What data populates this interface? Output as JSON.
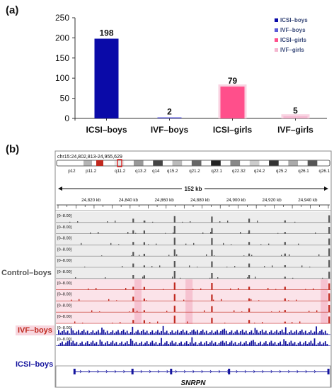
{
  "panel_a_label": "(a)",
  "panel_b_label": "(b)",
  "chart_data": {
    "type": "bar",
    "categories": [
      "ICSI–boys",
      "IVF–boys",
      "ICSI–girls",
      "IVF–girls"
    ],
    "values": [
      198,
      2,
      79,
      5
    ],
    "data_labels": [
      "198",
      "2",
      "79",
      "5"
    ],
    "colors": [
      "#0a0aa8",
      "#5b5bd6",
      "#ff4f8b",
      "#f4b6cf"
    ],
    "yticks": [
      0,
      50,
      100,
      150,
      200,
      250
    ],
    "ylim": [
      0,
      250
    ],
    "legend": [
      "ICSI–boys",
      "IVF–boys",
      "ICSI–girls",
      "IVF–girls"
    ],
    "legend_position": "top-right",
    "grid": false
  },
  "igv": {
    "locus": "chr15:24,802,813-24,955,629",
    "cytobands": [
      "p12",
      "p11.2",
      "q11.2",
      "q13.2",
      "q14",
      "q15.2",
      "q21.2",
      "q22.1",
      "q22.32",
      "q24.2",
      "q25.2",
      "q26.1",
      "q26.1"
    ],
    "span_label": "152 kb",
    "ruler_ticks": [
      "24,820 kb",
      "24,840 kb",
      "24,860 kb",
      "24,880 kb",
      "24,900 kb",
      "24,920 kb",
      "24,940 kb"
    ],
    "track_range": "[0–8.00]",
    "groups": [
      {
        "label": "Control–boys",
        "color": "#555555",
        "tracks": 6
      },
      {
        "label": "IVF–boys",
        "color": "#c0281e",
        "tracks": 4
      },
      {
        "label": "ICSI–boys",
        "color": "#14149e",
        "tracks": 2
      }
    ],
    "gene": "SNRPN"
  }
}
